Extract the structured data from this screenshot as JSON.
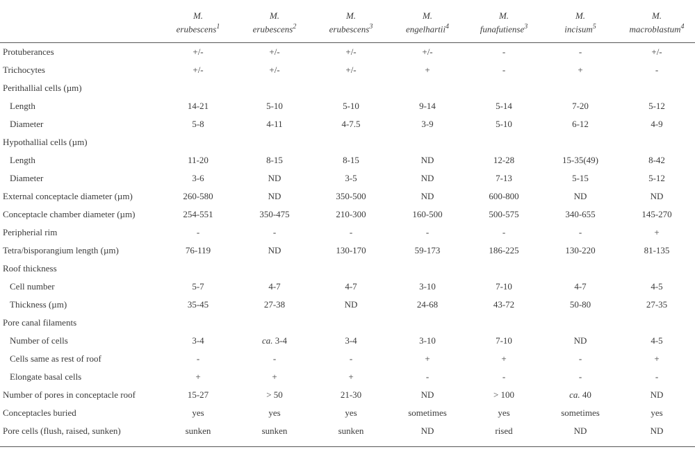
{
  "columns": [
    {
      "genus": "M.",
      "species": "erubescens",
      "sup": "1"
    },
    {
      "genus": "M.",
      "species": "erubescens",
      "sup": "2"
    },
    {
      "genus": "M.",
      "species": "erubescens",
      "sup": "3"
    },
    {
      "genus": "M.",
      "species": "engelhartii",
      "sup": "4"
    },
    {
      "genus": "M.",
      "species": "funafutiense",
      "sup": "3"
    },
    {
      "genus": "M.",
      "species": "incisum",
      "sup": "5"
    },
    {
      "genus": "M.",
      "species": "macroblastum",
      "sup": "4"
    }
  ],
  "rows": [
    {
      "label": "Protuberances",
      "indent": false,
      "vals": [
        "+/-",
        "+/-",
        "+/-",
        "+/-",
        "-",
        "-",
        "+/-"
      ]
    },
    {
      "label": "Trichocytes",
      "indent": false,
      "vals": [
        "+/-",
        "+/-",
        "+/-",
        "+",
        "-",
        "+",
        "-"
      ]
    },
    {
      "label": "Perithallial cells (µm)",
      "indent": false,
      "vals": [
        "",
        "",
        "",
        "",
        "",
        "",
        ""
      ]
    },
    {
      "label": "Length",
      "indent": true,
      "vals": [
        "14-21",
        "5-10",
        "5-10",
        "9-14",
        "5-14",
        "7-20",
        "5-12"
      ]
    },
    {
      "label": "Diameter",
      "indent": true,
      "vals": [
        "5-8",
        "4-11",
        "4-7.5",
        "3-9",
        "5-10",
        "6-12",
        "4-9"
      ]
    },
    {
      "label": "Hypothallial cells (µm)",
      "indent": false,
      "vals": [
        "",
        "",
        "",
        "",
        "",
        "",
        ""
      ]
    },
    {
      "label": "Length",
      "indent": true,
      "vals": [
        "11-20",
        "8-15",
        "8-15",
        "ND",
        "12-28",
        "15-35(49)",
        "8-42"
      ]
    },
    {
      "label": "Diameter",
      "indent": true,
      "vals": [
        "3-6",
        "ND",
        "3-5",
        "ND",
        "7-13",
        "5-15",
        "5-12"
      ]
    },
    {
      "label": "External conceptacle diameter (µm)",
      "indent": false,
      "vals": [
        "260-580",
        "ND",
        "350-500",
        "ND",
        "600-800",
        "ND",
        "ND"
      ]
    },
    {
      "label": "Conceptacle chamber diameter (µm)",
      "indent": false,
      "vals": [
        "254-551",
        "350-475",
        "210-300",
        "160-500",
        "500-575",
        "340-655",
        "145-270"
      ]
    },
    {
      "label": "Peripherial rim",
      "indent": false,
      "vals": [
        "-",
        "-",
        "-",
        "-",
        "-",
        "-",
        "+"
      ]
    },
    {
      "label": "Tetra/bisporangium length (µm)",
      "indent": false,
      "vals": [
        "76-119",
        "ND",
        "130-170",
        "59-173",
        "186-225",
        "130-220",
        "81-135"
      ]
    },
    {
      "label": "Roof thickness",
      "indent": false,
      "vals": [
        "",
        "",
        "",
        "",
        "",
        "",
        ""
      ]
    },
    {
      "label": "Cell number",
      "indent": true,
      "vals": [
        "5-7",
        "4-7",
        "4-7",
        "3-10",
        "7-10",
        "4-7",
        "4-5"
      ]
    },
    {
      "label": "Thickness (µm)",
      "indent": true,
      "vals": [
        "35-45",
        "27-38",
        "ND",
        "24-68",
        "43-72",
        "50-80",
        "27-35"
      ]
    },
    {
      "label": "Pore canal filaments",
      "indent": false,
      "vals": [
        "",
        "",
        "",
        "",
        "",
        "",
        ""
      ]
    },
    {
      "label": "Number of cells",
      "indent": true,
      "vals": [
        "3-4",
        "ca. 3-4",
        "3-4",
        "3-10",
        "7-10",
        "ND",
        "4-5"
      ]
    },
    {
      "label": "Cells same as rest of roof",
      "indent": true,
      "vals": [
        "-",
        "-",
        "-",
        "+",
        "+",
        "-",
        "+"
      ]
    },
    {
      "label": "Elongate basal cells",
      "indent": true,
      "vals": [
        "+",
        "+",
        "+",
        "-",
        "-",
        "-",
        "-"
      ]
    },
    {
      "label": "Number of pores in conceptacle roof",
      "indent": false,
      "vals": [
        "15-27",
        "> 50",
        "21-30",
        "ND",
        "> 100",
        "ca. 40",
        "ND"
      ]
    },
    {
      "label": "Conceptacles buried",
      "indent": false,
      "vals": [
        "yes",
        "yes",
        "yes",
        "sometimes",
        "yes",
        "sometimes",
        "yes"
      ]
    },
    {
      "label": "Pore cells (flush, raised, sunken)",
      "indent": false,
      "vals": [
        "sunken",
        "sunken",
        "sunken",
        "ND",
        "rised",
        "ND",
        "ND"
      ]
    }
  ],
  "italic_cells": {
    "16.1": true,
    "19.5": true
  }
}
